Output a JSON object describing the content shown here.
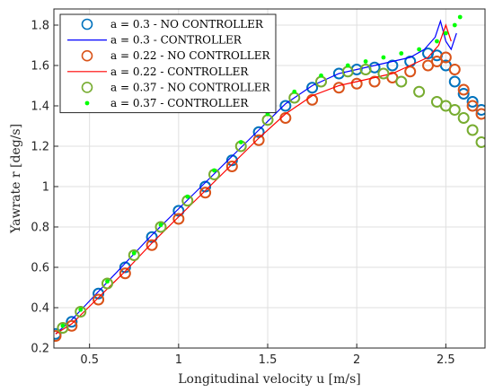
{
  "chart_data": {
    "type": "scatter",
    "xlabel": "Longitudinal velocity u [m/s]",
    "ylabel": "Yawrate r [deg/s]",
    "xlim": [
      0.3,
      2.72
    ],
    "ylim": [
      0.2,
      1.88
    ],
    "xticks": [
      "0.5",
      "1",
      "1.5",
      "2",
      "2.5"
    ],
    "yticks": [
      "0.2",
      "0.4",
      "0.6",
      "0.8",
      "1",
      "1.2",
      "1.4",
      "1.6",
      "1.8"
    ],
    "grid": true,
    "legend_position": "top-left",
    "series": [
      {
        "name": "a = 0.3 - NO CONTROLLER",
        "marker": "open-circle",
        "color": "#0072BD",
        "x": [
          0.31,
          0.4,
          0.55,
          0.7,
          0.85,
          1.0,
          1.15,
          1.3,
          1.45,
          1.6,
          1.75,
          1.9,
          2.0,
          2.1,
          2.2,
          2.3,
          2.4,
          2.45,
          2.5,
          2.55,
          2.6,
          2.65,
          2.7
        ],
        "y": [
          0.27,
          0.33,
          0.47,
          0.6,
          0.75,
          0.88,
          1.0,
          1.13,
          1.27,
          1.4,
          1.49,
          1.56,
          1.58,
          1.59,
          1.6,
          1.62,
          1.66,
          1.65,
          1.6,
          1.52,
          1.46,
          1.42,
          1.38
        ]
      },
      {
        "name": "a = 0.3 - CONTROLLER",
        "marker": "line",
        "color": "#0000FF",
        "x": [
          0.31,
          0.4,
          0.55,
          0.7,
          0.85,
          1.0,
          1.15,
          1.3,
          1.45,
          1.6,
          1.75,
          1.9,
          2.0,
          2.1,
          2.2,
          2.3,
          2.38,
          2.44,
          2.47,
          2.5,
          2.53,
          2.56
        ],
        "y": [
          0.27,
          0.34,
          0.48,
          0.62,
          0.76,
          0.89,
          1.02,
          1.15,
          1.28,
          1.41,
          1.5,
          1.56,
          1.58,
          1.6,
          1.62,
          1.64,
          1.68,
          1.74,
          1.82,
          1.72,
          1.68,
          1.76
        ]
      },
      {
        "name": "a = 0.22 - NO CONTROLLER",
        "marker": "open-circle",
        "color": "#D95319",
        "x": [
          0.31,
          0.4,
          0.55,
          0.7,
          0.85,
          1.0,
          1.15,
          1.3,
          1.45,
          1.6,
          1.75,
          1.9,
          2.0,
          2.1,
          2.2,
          2.3,
          2.4,
          2.45,
          2.5,
          2.55,
          2.6,
          2.65,
          2.7
        ],
        "y": [
          0.26,
          0.31,
          0.44,
          0.57,
          0.71,
          0.84,
          0.97,
          1.1,
          1.23,
          1.34,
          1.43,
          1.49,
          1.51,
          1.52,
          1.54,
          1.57,
          1.6,
          1.62,
          1.64,
          1.58,
          1.48,
          1.4,
          1.36
        ]
      },
      {
        "name": "a = 0.22 - CONTROLLER",
        "marker": "line",
        "color": "#FF0000",
        "x": [
          0.31,
          0.4,
          0.55,
          0.7,
          0.85,
          1.0,
          1.15,
          1.3,
          1.45,
          1.6,
          1.75,
          1.9,
          2.0,
          2.1,
          2.2,
          2.3,
          2.4,
          2.46,
          2.5,
          2.53
        ],
        "y": [
          0.27,
          0.32,
          0.45,
          0.58,
          0.72,
          0.85,
          0.98,
          1.11,
          1.24,
          1.36,
          1.45,
          1.5,
          1.52,
          1.54,
          1.56,
          1.6,
          1.64,
          1.7,
          1.8,
          1.72
        ]
      },
      {
        "name": "a = 0.37 - NO CONTROLLER",
        "marker": "open-circle",
        "color": "#77AC30",
        "x": [
          0.35,
          0.45,
          0.6,
          0.75,
          0.9,
          1.05,
          1.2,
          1.35,
          1.5,
          1.65,
          1.8,
          1.95,
          2.05,
          2.15,
          2.25,
          2.35,
          2.45,
          2.5,
          2.55,
          2.6,
          2.65,
          2.7
        ],
        "y": [
          0.3,
          0.38,
          0.52,
          0.66,
          0.8,
          0.93,
          1.06,
          1.2,
          1.33,
          1.44,
          1.52,
          1.57,
          1.58,
          1.56,
          1.52,
          1.47,
          1.42,
          1.4,
          1.38,
          1.34,
          1.28,
          1.22
        ]
      },
      {
        "name": "a = 0.37 - CONTROLLER",
        "marker": "point",
        "color": "#00FF00",
        "x": [
          0.35,
          0.45,
          0.6,
          0.75,
          0.9,
          1.05,
          1.2,
          1.35,
          1.5,
          1.65,
          1.8,
          1.95,
          2.05,
          2.15,
          2.25,
          2.35,
          2.45,
          2.5,
          2.55,
          2.58
        ],
        "y": [
          0.31,
          0.39,
          0.53,
          0.67,
          0.81,
          0.95,
          1.08,
          1.22,
          1.36,
          1.47,
          1.55,
          1.6,
          1.62,
          1.64,
          1.66,
          1.68,
          1.72,
          1.76,
          1.8,
          1.84
        ]
      }
    ]
  }
}
